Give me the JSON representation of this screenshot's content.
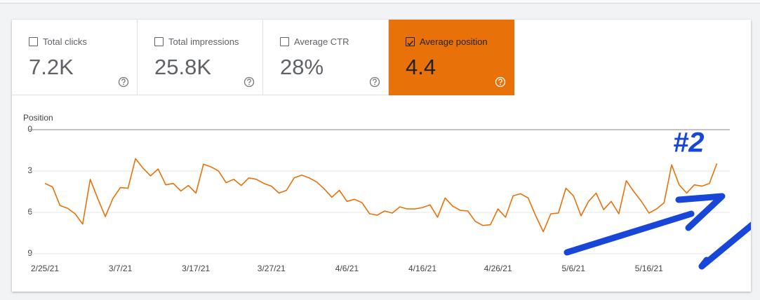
{
  "metrics": [
    {
      "label": "Total clicks",
      "value": "7.2K",
      "selected": false
    },
    {
      "label": "Total impressions",
      "value": "25.8K",
      "selected": false
    },
    {
      "label": "Average CTR",
      "value": "28%",
      "selected": false
    },
    {
      "label": "Average position",
      "value": "4.4",
      "selected": true
    }
  ],
  "chart_data": {
    "type": "line",
    "y_axis_title": "Position",
    "y_reversed": true,
    "grid": true,
    "ylim": [
      0,
      9
    ],
    "yticks": [
      0,
      3,
      6,
      9
    ],
    "x": [
      "2/25/21",
      "2/26/21",
      "2/27/21",
      "2/28/21",
      "3/1/21",
      "3/2/21",
      "3/3/21",
      "3/4/21",
      "3/5/21",
      "3/6/21",
      "3/7/21",
      "3/8/21",
      "3/9/21",
      "3/10/21",
      "3/11/21",
      "3/12/21",
      "3/13/21",
      "3/14/21",
      "3/15/21",
      "3/16/21",
      "3/17/21",
      "3/18/21",
      "3/19/21",
      "3/20/21",
      "3/21/21",
      "3/22/21",
      "3/23/21",
      "3/24/21",
      "3/25/21",
      "3/26/21",
      "3/27/21",
      "3/28/21",
      "3/29/21",
      "3/30/21",
      "3/31/21",
      "4/1/21",
      "4/2/21",
      "4/3/21",
      "4/4/21",
      "4/5/21",
      "4/6/21",
      "4/7/21",
      "4/8/21",
      "4/9/21",
      "4/10/21",
      "4/11/21",
      "4/12/21",
      "4/13/21",
      "4/14/21",
      "4/15/21",
      "4/16/21",
      "4/17/21",
      "4/18/21",
      "4/19/21",
      "4/20/21",
      "4/21/21",
      "4/22/21",
      "4/23/21",
      "4/24/21",
      "4/25/21",
      "4/26/21",
      "4/27/21",
      "4/28/21",
      "4/29/21",
      "4/30/21",
      "5/1/21",
      "5/2/21",
      "5/3/21",
      "5/4/21",
      "5/5/21",
      "5/6/21",
      "5/7/21",
      "5/8/21",
      "5/9/21",
      "5/10/21",
      "5/11/21",
      "5/12/21",
      "5/13/21",
      "5/14/21",
      "5/15/21",
      "5/16/21",
      "5/17/21",
      "5/18/21",
      "5/19/21",
      "5/20/21",
      "5/21/21",
      "5/22/21",
      "5/23/21",
      "5/24/21",
      "5/25/21"
    ],
    "xticks": [
      "2/25/21",
      "3/7/21",
      "3/17/21",
      "3/27/21",
      "4/6/21",
      "4/16/21",
      "4/26/21",
      "5/6/21",
      "5/16/21"
    ],
    "series": [
      {
        "color": "#e8710a",
        "values": [
          3.9,
          4.15,
          5.5,
          5.7,
          6.1,
          6.85,
          3.6,
          5.0,
          6.3,
          5.0,
          4.2,
          4.25,
          2.1,
          2.8,
          3.35,
          2.85,
          4.0,
          3.9,
          4.45,
          4.05,
          4.6,
          2.5,
          2.7,
          3.0,
          3.85,
          3.6,
          4.05,
          3.5,
          3.6,
          3.9,
          4.1,
          4.6,
          4.4,
          3.5,
          3.3,
          3.5,
          3.8,
          4.3,
          4.9,
          4.4,
          5.2,
          5.05,
          5.3,
          6.1,
          6.2,
          5.9,
          6.05,
          5.6,
          5.75,
          5.75,
          5.65,
          5.45,
          6.35,
          4.95,
          5.55,
          5.85,
          5.9,
          6.65,
          6.95,
          6.9,
          5.75,
          6.35,
          4.8,
          4.65,
          4.95,
          6.25,
          7.4,
          6.1,
          6.05,
          4.25,
          4.8,
          6.25,
          5.2,
          4.6,
          5.8,
          5.2,
          6.1,
          3.7,
          4.5,
          5.2,
          6.05,
          5.75,
          5.3,
          2.55,
          4.0,
          4.6,
          4.0,
          4.1,
          3.9,
          2.45
        ]
      }
    ],
    "annotations": [
      "#2"
    ]
  }
}
